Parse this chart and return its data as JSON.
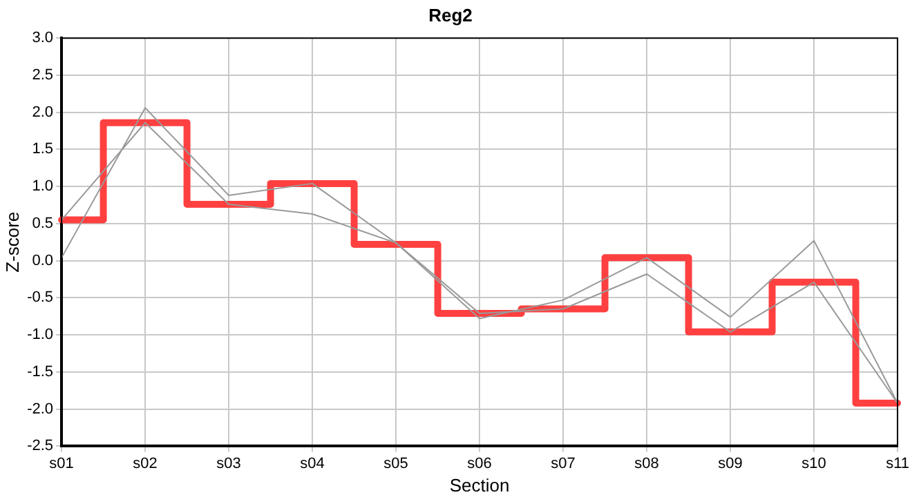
{
  "chart_data": {
    "type": "line",
    "title": "Reg2",
    "xlabel": "Section",
    "ylabel": "Z-score",
    "categories": [
      "s01",
      "s02",
      "s03",
      "s04",
      "s05",
      "s06",
      "s07",
      "s08",
      "s09",
      "s10",
      "s11"
    ],
    "series": [
      {
        "color": "#999999",
        "values": [
          0.04,
          2.06,
          0.88,
          1.04,
          0.24,
          -0.78,
          -0.53,
          0.04,
          -0.76,
          0.27,
          -1.92
        ]
      },
      {
        "color": "#999999",
        "values": [
          0.55,
          1.86,
          0.76,
          0.63,
          0.24,
          -0.71,
          -0.65,
          -0.18,
          -0.96,
          -0.29,
          -1.92
        ]
      },
      {
        "type": "step",
        "color": "#ff4040",
        "values": [
          0.55,
          1.86,
          0.76,
          1.04,
          0.22,
          -0.71,
          -0.65,
          0.04,
          -0.96,
          -0.29,
          -1.92
        ]
      }
    ],
    "ylim": [
      -2.5,
      3.0
    ],
    "yticks": [
      {
        "value": -2.5,
        "label": "-2.5"
      },
      {
        "value": -2,
        "label": "-2.0"
      },
      {
        "value": -1.5,
        "label": "-1.5"
      },
      {
        "value": -1,
        "label": "-1.0"
      },
      {
        "value": -0.5,
        "label": "-0.5"
      },
      {
        "value": 0,
        "label": "0.0"
      },
      {
        "value": 0.5,
        "label": "0.5"
      },
      {
        "value": 1,
        "label": "1.0"
      },
      {
        "value": 1.5,
        "label": "1.5"
      },
      {
        "value": 2,
        "label": "2.0"
      },
      {
        "value": 2.5,
        "label": "2.5"
      },
      {
        "value": 3,
        "label": "3.0"
      }
    ],
    "grid": true,
    "legend": false,
    "marker": "none",
    "line_style": "solid"
  }
}
